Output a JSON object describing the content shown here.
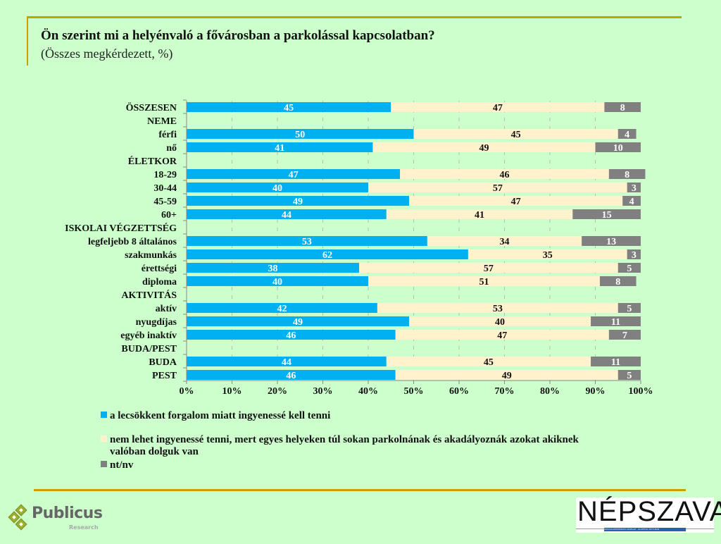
{
  "header": {
    "title": "Ön szerint mi a helyénvaló a fővárosban a parkolással kapcsolatban?",
    "subtitle": "(Összes megkérdezett, %)"
  },
  "chart_data": {
    "type": "bar",
    "orientation": "horizontal",
    "stacked": "100%",
    "title": "Ön szerint mi a helyénvaló a fővárosban a parkolással kapcsolatban?",
    "subtitle": "(Összes megkérdezett, %)",
    "xlabel": "",
    "ylabel": "",
    "xlim": [
      0,
      100
    ],
    "x_ticks": [
      "0%",
      "10%",
      "20%",
      "30%",
      "40%",
      "50%",
      "60%",
      "70%",
      "80%",
      "90%",
      "100%"
    ],
    "grid": "vertical dashed",
    "legend_position": "bottom",
    "categories": [
      "ÖSSZESEN",
      "NEME",
      "férfi",
      "nő",
      "ÉLETKOR",
      "18-29",
      "30-44",
      "45-59",
      "60+",
      "ISKOLAI VÉGZETTSÉG",
      "legfeljebb 8 általános",
      "szakmunkás",
      "érettségi",
      "diploma",
      "AKTIVITÁS",
      "aktív",
      "nyugdíjas",
      "egyéb inaktív",
      "BUDA/PEST",
      "BUDA",
      "PEST"
    ],
    "series": [
      {
        "name": "a lecsökkent forgalom miatt ingyenessé kell tenni",
        "color": "#00b0f0",
        "label_color": "#ffffff",
        "values": [
          45,
          null,
          50,
          41,
          null,
          47,
          40,
          49,
          44,
          null,
          53,
          62,
          38,
          40,
          null,
          42,
          49,
          46,
          null,
          44,
          46
        ]
      },
      {
        "name": "nem lehet ingyenessé tenni, mert egyes helyeken túl sokan parkolnának és akadályoznák azokat akiknek valóban dolguk van",
        "color": "#fff2cc",
        "label_color": "#111111",
        "values": [
          47,
          null,
          45,
          49,
          null,
          46,
          57,
          47,
          41,
          null,
          34,
          35,
          57,
          51,
          null,
          53,
          40,
          47,
          null,
          45,
          49
        ]
      },
      {
        "name": "nt/nv",
        "color": "#808080",
        "label_color": "#ffffff",
        "values": [
          8,
          null,
          4,
          10,
          null,
          8,
          3,
          4,
          15,
          null,
          13,
          3,
          5,
          8,
          null,
          5,
          11,
          7,
          null,
          11,
          5
        ]
      }
    ]
  },
  "legend": [
    {
      "label": "a lecsökkent forgalom miatt ingyenessé kell tenni",
      "color": "#00b0f0"
    },
    {
      "label": "nem lehet ingyenessé tenni, mert egyes helyeken túl sokan parkolnának és akadályoznák azokat akiknek valóban dolguk van",
      "color": "#fff2cc"
    },
    {
      "label": "nt/nv",
      "color": "#808080"
    }
  ],
  "footer": {
    "publicus_name": "Publicus",
    "publicus_sub": "Research",
    "nepszava_name": "NÉPSZAVA",
    "nepszava_strip": "SZOCIÁLDEMOKRATA NAPILAP · ALAPÍTVA 1873-BAN"
  }
}
